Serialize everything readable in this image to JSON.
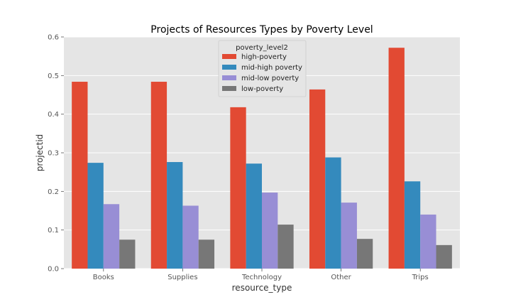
{
  "chart_data": {
    "type": "bar",
    "title": "Projects of Resources Types by Poverty Level",
    "xlabel": "resource_type",
    "ylabel": "projectid",
    "categories": [
      "Books",
      "Supplies",
      "Technology",
      "Other",
      "Trips"
    ],
    "ylim": [
      0,
      0.6
    ],
    "yticks": [
      "0.0",
      "0.1",
      "0.2",
      "0.3",
      "0.4",
      "0.5",
      "0.6"
    ],
    "grid": true,
    "legend_title": "poverty_level2",
    "legend_position": "top-center",
    "series": [
      {
        "name": "high-poverty",
        "color": "#E24A33",
        "values": [
          0.484,
          0.484,
          0.418,
          0.464,
          0.572
        ]
      },
      {
        "name": "mid-high poverty",
        "color": "#348ABD",
        "values": [
          0.274,
          0.276,
          0.272,
          0.288,
          0.226
        ]
      },
      {
        "name": "mid-low poverty",
        "color": "#988ED5",
        "values": [
          0.167,
          0.163,
          0.197,
          0.171,
          0.14
        ]
      },
      {
        "name": "low-poverty",
        "color": "#777777",
        "values": [
          0.075,
          0.075,
          0.114,
          0.077,
          0.061
        ]
      }
    ]
  }
}
